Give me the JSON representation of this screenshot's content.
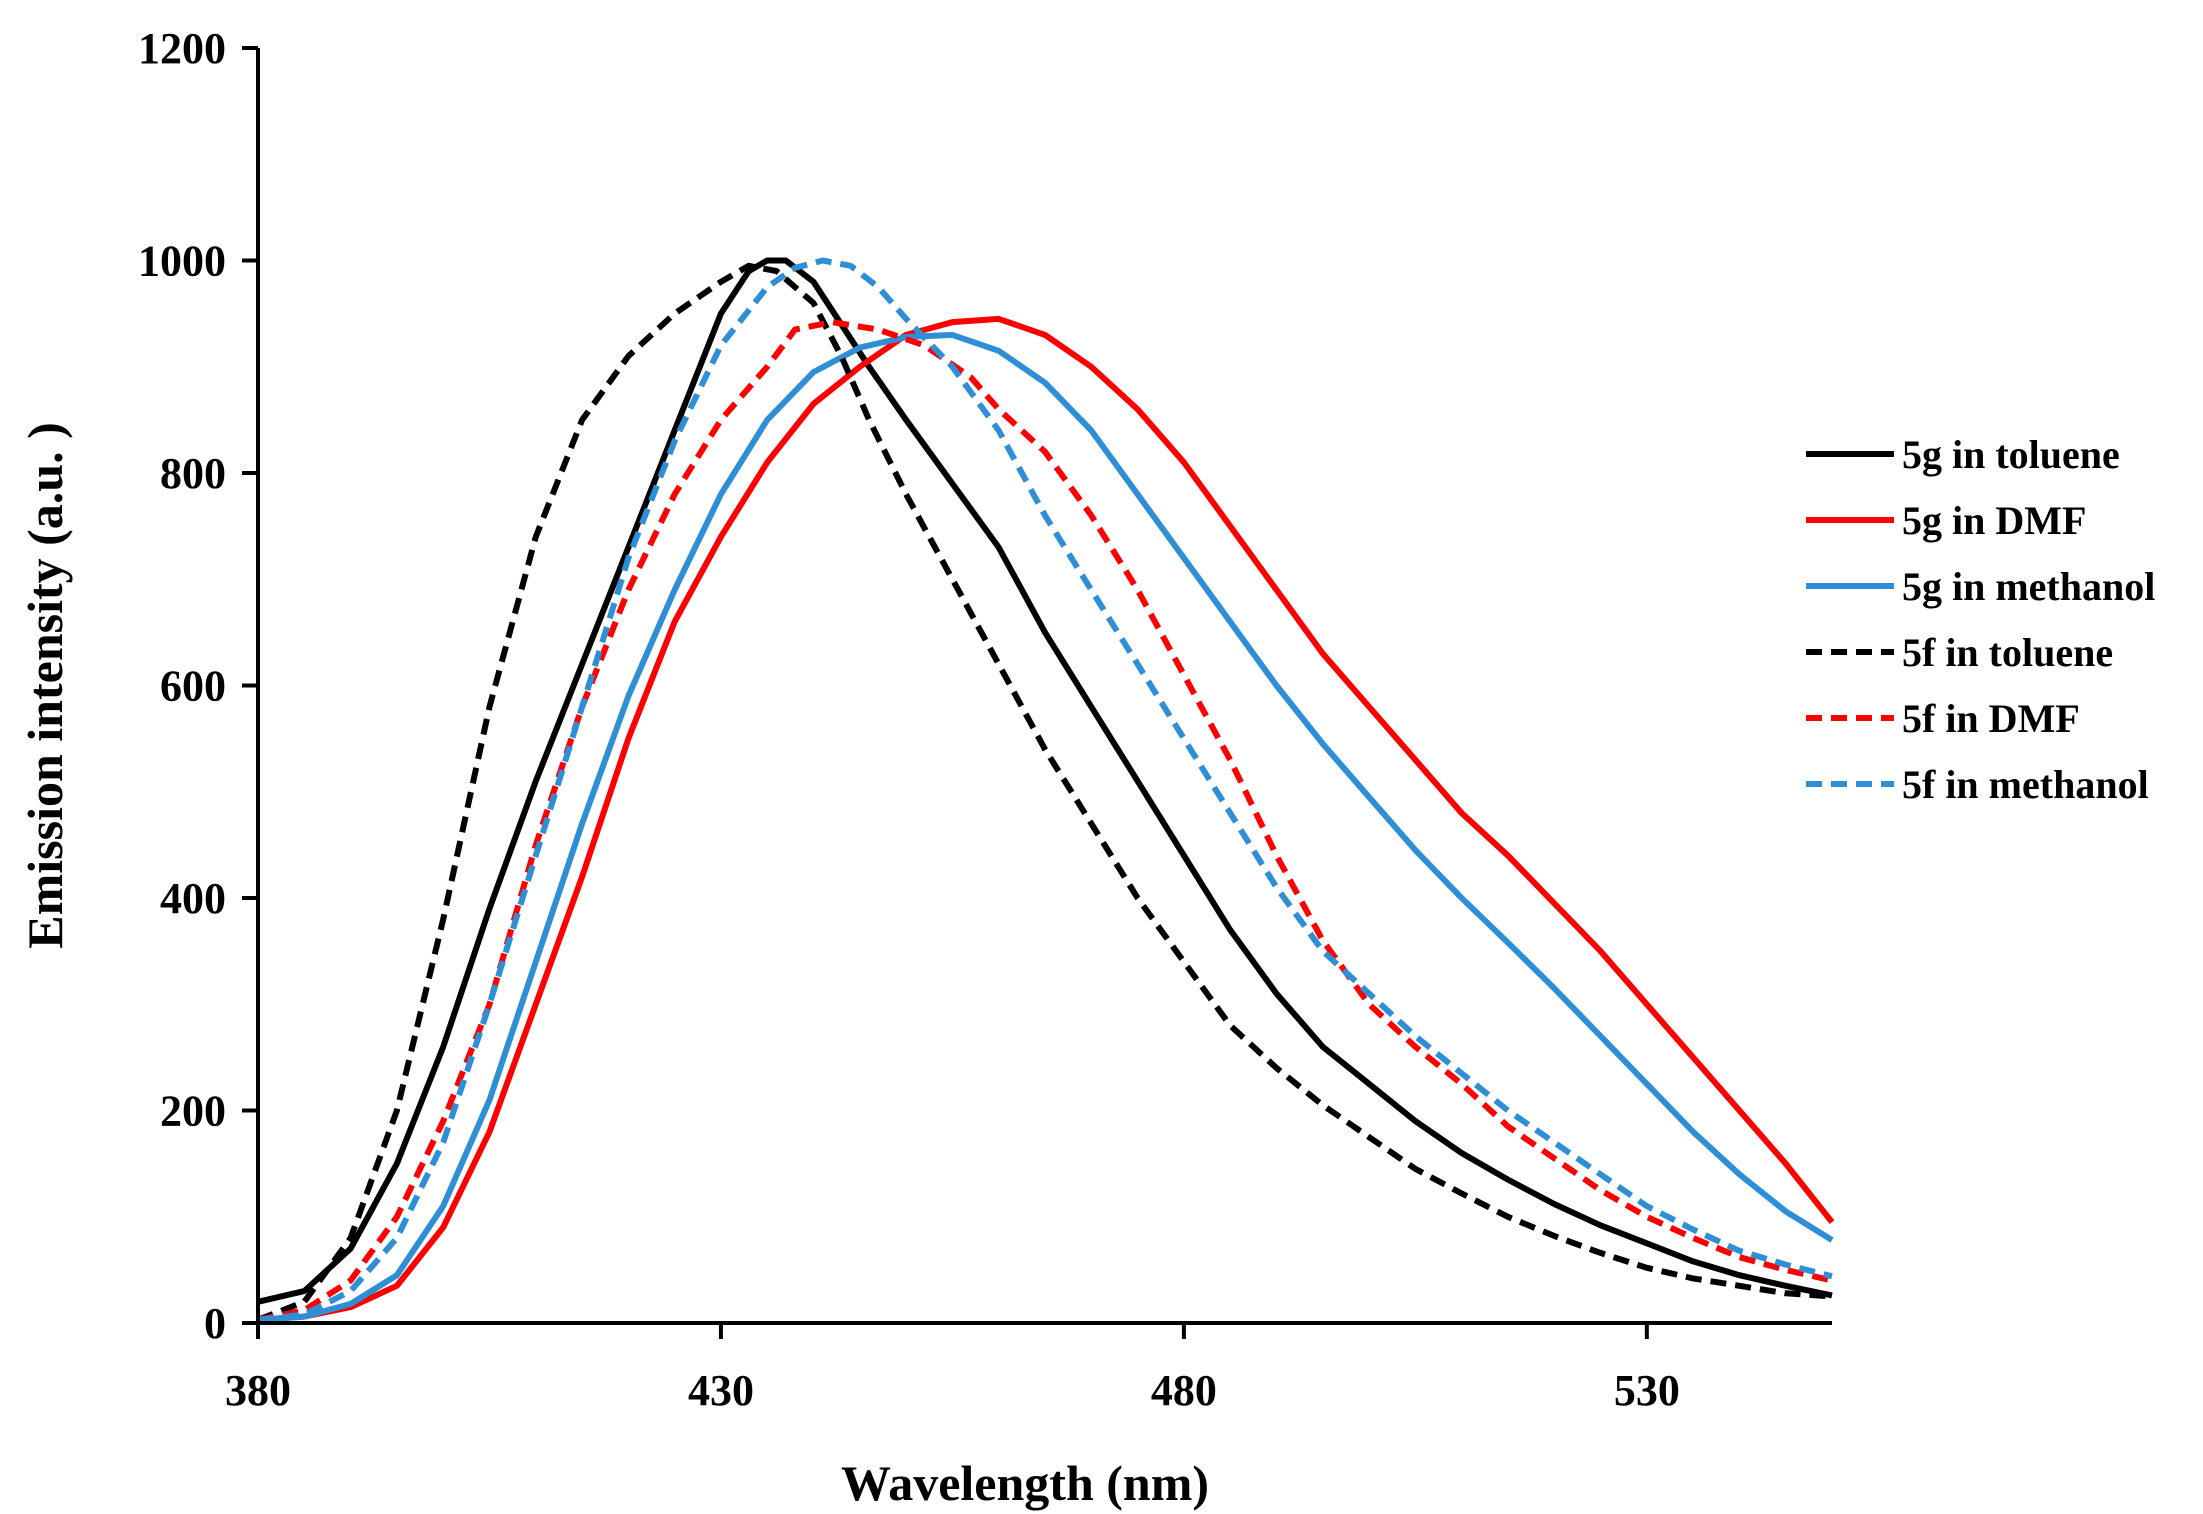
{
  "chart_data": {
    "type": "line",
    "title": "",
    "xlabel": "Wavelength (nm)",
    "ylabel": "Emission intensity (a.u. )",
    "xlim": [
      380,
      550
    ],
    "ylim": [
      0,
      1200
    ],
    "x_ticks": [
      380,
      430,
      480,
      530
    ],
    "y_ticks": [
      0,
      200,
      400,
      600,
      800,
      1000,
      1200
    ],
    "x_tick_labels": [
      "380",
      "430",
      "480",
      "530"
    ],
    "y_tick_labels": [
      "0",
      "200",
      "400",
      "600",
      "800",
      "1000",
      "1200"
    ],
    "grid": false,
    "legend_position": "right",
    "series": [
      {
        "name": "5g in toluene",
        "color": "#000000",
        "dash": "solid",
        "points": [
          [
            380,
            20
          ],
          [
            385,
            30
          ],
          [
            390,
            70
          ],
          [
            395,
            150
          ],
          [
            400,
            260
          ],
          [
            405,
            390
          ],
          [
            410,
            510
          ],
          [
            415,
            620
          ],
          [
            420,
            730
          ],
          [
            425,
            840
          ],
          [
            430,
            950
          ],
          [
            433,
            990
          ],
          [
            435,
            1000
          ],
          [
            437,
            1000
          ],
          [
            440,
            980
          ],
          [
            443,
            940
          ],
          [
            446,
            900
          ],
          [
            450,
            850
          ],
          [
            455,
            790
          ],
          [
            460,
            730
          ],
          [
            465,
            650
          ],
          [
            470,
            580
          ],
          [
            475,
            510
          ],
          [
            480,
            440
          ],
          [
            485,
            370
          ],
          [
            490,
            310
          ],
          [
            495,
            260
          ],
          [
            500,
            225
          ],
          [
            505,
            190
          ],
          [
            510,
            160
          ],
          [
            515,
            135
          ],
          [
            520,
            112
          ],
          [
            525,
            92
          ],
          [
            530,
            75
          ],
          [
            535,
            58
          ],
          [
            540,
            45
          ],
          [
            545,
            35
          ],
          [
            550,
            26
          ]
        ]
      },
      {
        "name": "5g in DMF",
        "color": "#ff0000",
        "dash": "solid",
        "points": [
          [
            380,
            3
          ],
          [
            385,
            6
          ],
          [
            390,
            15
          ],
          [
            395,
            35
          ],
          [
            400,
            90
          ],
          [
            405,
            180
          ],
          [
            410,
            300
          ],
          [
            415,
            420
          ],
          [
            420,
            550
          ],
          [
            425,
            660
          ],
          [
            430,
            740
          ],
          [
            435,
            810
          ],
          [
            440,
            865
          ],
          [
            445,
            900
          ],
          [
            450,
            930
          ],
          [
            455,
            942
          ],
          [
            460,
            945
          ],
          [
            465,
            930
          ],
          [
            470,
            900
          ],
          [
            475,
            860
          ],
          [
            480,
            810
          ],
          [
            485,
            750
          ],
          [
            490,
            690
          ],
          [
            495,
            630
          ],
          [
            500,
            580
          ],
          [
            505,
            530
          ],
          [
            510,
            480
          ],
          [
            515,
            440
          ],
          [
            520,
            395
          ],
          [
            525,
            350
          ],
          [
            530,
            300
          ],
          [
            535,
            250
          ],
          [
            540,
            200
          ],
          [
            545,
            150
          ],
          [
            550,
            95
          ]
        ]
      },
      {
        "name": "5g in methanol",
        "color": "#2e8fd6",
        "dash": "solid",
        "points": [
          [
            380,
            3
          ],
          [
            385,
            6
          ],
          [
            390,
            18
          ],
          [
            395,
            45
          ],
          [
            400,
            110
          ],
          [
            405,
            210
          ],
          [
            410,
            340
          ],
          [
            415,
            470
          ],
          [
            420,
            590
          ],
          [
            425,
            690
          ],
          [
            430,
            780
          ],
          [
            435,
            850
          ],
          [
            440,
            895
          ],
          [
            445,
            918
          ],
          [
            450,
            928
          ],
          [
            455,
            930
          ],
          [
            460,
            915
          ],
          [
            465,
            885
          ],
          [
            470,
            840
          ],
          [
            475,
            780
          ],
          [
            480,
            720
          ],
          [
            485,
            660
          ],
          [
            490,
            600
          ],
          [
            495,
            545
          ],
          [
            500,
            495
          ],
          [
            505,
            445
          ],
          [
            510,
            400
          ],
          [
            515,
            358
          ],
          [
            520,
            315
          ],
          [
            525,
            270
          ],
          [
            530,
            225
          ],
          [
            535,
            180
          ],
          [
            540,
            140
          ],
          [
            545,
            105
          ],
          [
            550,
            78
          ]
        ]
      },
      {
        "name": "5f in toluene",
        "color": "#000000",
        "dash": "dashed",
        "points": [
          [
            380,
            3
          ],
          [
            385,
            20
          ],
          [
            390,
            80
          ],
          [
            395,
            200
          ],
          [
            400,
            380
          ],
          [
            405,
            580
          ],
          [
            410,
            740
          ],
          [
            415,
            850
          ],
          [
            420,
            910
          ],
          [
            425,
            950
          ],
          [
            430,
            980
          ],
          [
            433,
            995
          ],
          [
            436,
            990
          ],
          [
            440,
            960
          ],
          [
            443,
            910
          ],
          [
            446,
            850
          ],
          [
            450,
            780
          ],
          [
            455,
            700
          ],
          [
            460,
            620
          ],
          [
            465,
            540
          ],
          [
            470,
            470
          ],
          [
            475,
            400
          ],
          [
            480,
            340
          ],
          [
            485,
            280
          ],
          [
            490,
            240
          ],
          [
            495,
            205
          ],
          [
            500,
            175
          ],
          [
            505,
            145
          ],
          [
            510,
            122
          ],
          [
            515,
            100
          ],
          [
            520,
            82
          ],
          [
            525,
            66
          ],
          [
            530,
            52
          ],
          [
            535,
            42
          ],
          [
            540,
            35
          ],
          [
            545,
            28
          ],
          [
            550,
            25
          ]
        ]
      },
      {
        "name": "5f in DMF",
        "color": "#ff0000",
        "dash": "dashed",
        "points": [
          [
            380,
            3
          ],
          [
            385,
            12
          ],
          [
            390,
            40
          ],
          [
            395,
            100
          ],
          [
            400,
            190
          ],
          [
            405,
            300
          ],
          [
            410,
            450
          ],
          [
            415,
            580
          ],
          [
            420,
            690
          ],
          [
            425,
            780
          ],
          [
            430,
            850
          ],
          [
            435,
            900
          ],
          [
            438,
            935
          ],
          [
            442,
            942
          ],
          [
            447,
            935
          ],
          [
            452,
            920
          ],
          [
            457,
            890
          ],
          [
            460,
            860
          ],
          [
            465,
            820
          ],
          [
            470,
            760
          ],
          [
            475,
            690
          ],
          [
            480,
            610
          ],
          [
            485,
            530
          ],
          [
            490,
            440
          ],
          [
            495,
            360
          ],
          [
            500,
            300
          ],
          [
            505,
            260
          ],
          [
            510,
            225
          ],
          [
            515,
            185
          ],
          [
            520,
            155
          ],
          [
            525,
            125
          ],
          [
            530,
            100
          ],
          [
            535,
            80
          ],
          [
            540,
            62
          ],
          [
            545,
            50
          ],
          [
            550,
            40
          ]
        ]
      },
      {
        "name": "5f in methanol",
        "color": "#2e8fd6",
        "dash": "dashed",
        "points": [
          [
            380,
            3
          ],
          [
            385,
            8
          ],
          [
            390,
            30
          ],
          [
            395,
            80
          ],
          [
            400,
            170
          ],
          [
            405,
            300
          ],
          [
            410,
            440
          ],
          [
            415,
            580
          ],
          [
            420,
            720
          ],
          [
            425,
            830
          ],
          [
            430,
            920
          ],
          [
            435,
            975
          ],
          [
            438,
            993
          ],
          [
            441,
            1000
          ],
          [
            444,
            995
          ],
          [
            447,
            975
          ],
          [
            450,
            945
          ],
          [
            455,
            900
          ],
          [
            460,
            840
          ],
          [
            465,
            760
          ],
          [
            470,
            690
          ],
          [
            475,
            620
          ],
          [
            480,
            550
          ],
          [
            485,
            480
          ],
          [
            490,
            410
          ],
          [
            495,
            350
          ],
          [
            500,
            310
          ],
          [
            505,
            270
          ],
          [
            510,
            235
          ],
          [
            515,
            200
          ],
          [
            520,
            170
          ],
          [
            525,
            140
          ],
          [
            530,
            110
          ],
          [
            535,
            88
          ],
          [
            540,
            68
          ],
          [
            545,
            55
          ],
          [
            550,
            44
          ]
        ]
      }
    ]
  }
}
